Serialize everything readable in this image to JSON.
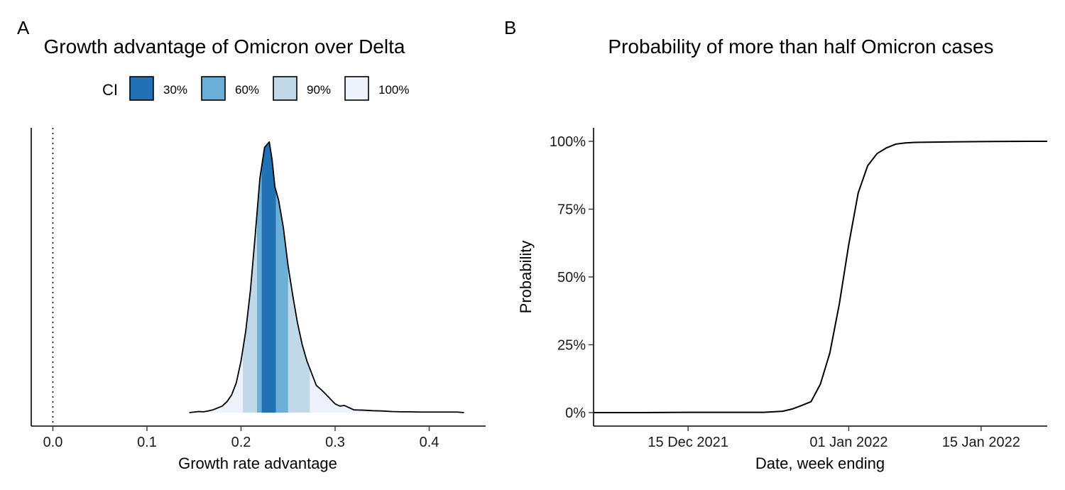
{
  "chart_data": [
    {
      "panel": "A",
      "type": "area",
      "title": "Growth advantage of Omicron over Delta",
      "xlabel": "Growth rate advantage",
      "ylabel": "",
      "xlim": [
        -0.023,
        0.46
      ],
      "xticks": [
        0.0,
        0.1,
        0.2,
        0.3,
        0.4
      ],
      "xtick_labels": [
        "0.0",
        "0.1",
        "0.2",
        "0.3",
        "0.4"
      ],
      "reference_line_x": 0.0,
      "grid": false,
      "legend": {
        "title": "CI",
        "placement": "top",
        "entries": [
          {
            "label": "30%",
            "color": "#2171b5"
          },
          {
            "label": "60%",
            "color": "#6baed6"
          },
          {
            "label": "90%",
            "color": "#c0d8e8"
          },
          {
            "label": "100%",
            "color": "#eef2fc"
          }
        ]
      },
      "intervals": [
        {
          "ci": "100%",
          "lo": 0.145,
          "hi": 0.437
        },
        {
          "ci": "90%",
          "lo": 0.202,
          "hi": 0.273
        },
        {
          "ci": "60%",
          "lo": 0.217,
          "hi": 0.25
        },
        {
          "ci": "30%",
          "lo": 0.222,
          "hi": 0.237
        }
      ],
      "density": {
        "x": [
          0.145,
          0.15,
          0.155,
          0.16,
          0.165,
          0.17,
          0.175,
          0.18,
          0.185,
          0.19,
          0.195,
          0.2,
          0.205,
          0.21,
          0.215,
          0.22,
          0.225,
          0.23,
          0.233,
          0.236,
          0.24,
          0.245,
          0.25,
          0.255,
          0.26,
          0.265,
          0.27,
          0.275,
          0.28,
          0.285,
          0.29,
          0.295,
          0.3,
          0.305,
          0.31,
          0.32,
          0.33,
          0.34,
          0.35,
          0.36,
          0.37,
          0.38,
          0.39,
          0.4,
          0.41,
          0.42,
          0.43,
          0.437
        ],
        "y": [
          0.0,
          0.002,
          0.004,
          0.003,
          0.006,
          0.01,
          0.017,
          0.024,
          0.04,
          0.065,
          0.11,
          0.19,
          0.3,
          0.45,
          0.65,
          0.86,
          0.975,
          0.995,
          0.93,
          0.83,
          0.78,
          0.68,
          0.54,
          0.43,
          0.33,
          0.25,
          0.19,
          0.145,
          0.1,
          0.085,
          0.068,
          0.05,
          0.032,
          0.024,
          0.026,
          0.01,
          0.009,
          0.007,
          0.006,
          0.004,
          0.003,
          0.003,
          0.002,
          0.002,
          0.002,
          0.002,
          0.002,
          0.0
        ]
      }
    },
    {
      "panel": "B",
      "type": "line",
      "title": "Probability of more than half Omicron cases",
      "xlabel": "Date, week ending",
      "ylabel": "Probability",
      "xlim": [
        "2021-12-05",
        "2022-01-22"
      ],
      "ylim": [
        0,
        1.05
      ],
      "xticks": [
        "2021-12-15",
        "2022-01-01",
        "2022-01-15"
      ],
      "xtick_labels": [
        "15 Dec 2021",
        "01 Jan 2022",
        "15 Jan 2022"
      ],
      "yticks": [
        0,
        0.25,
        0.5,
        0.75,
        1.0
      ],
      "ytick_labels": [
        "0%",
        "25%",
        "50%",
        "75%",
        "100%"
      ],
      "grid": false,
      "series": [
        {
          "x": [
            "2021-12-05",
            "2021-12-10",
            "2021-12-15",
            "2021-12-20",
            "2021-12-23",
            "2021-12-24",
            "2021-12-25",
            "2021-12-26",
            "2021-12-27",
            "2021-12-28",
            "2021-12-29",
            "2021-12-30",
            "2021-12-31",
            "2022-01-01",
            "2022-01-02",
            "2022-01-03",
            "2022-01-04",
            "2022-01-05",
            "2022-01-06",
            "2022-01-07",
            "2022-01-08",
            "2022-01-10",
            "2022-01-12",
            "2022-01-15",
            "2022-01-20",
            "2022-01-22"
          ],
          "y": [
            0.0,
            0.0,
            0.001,
            0.001,
            0.001,
            0.003,
            0.005,
            0.013,
            0.026,
            0.04,
            0.105,
            0.22,
            0.4,
            0.62,
            0.81,
            0.91,
            0.955,
            0.976,
            0.99,
            0.994,
            0.996,
            0.997,
            0.998,
            0.999,
            1.0,
            1.0
          ]
        }
      ]
    }
  ],
  "panels": {
    "a_letter": "A",
    "b_letter": "B"
  }
}
